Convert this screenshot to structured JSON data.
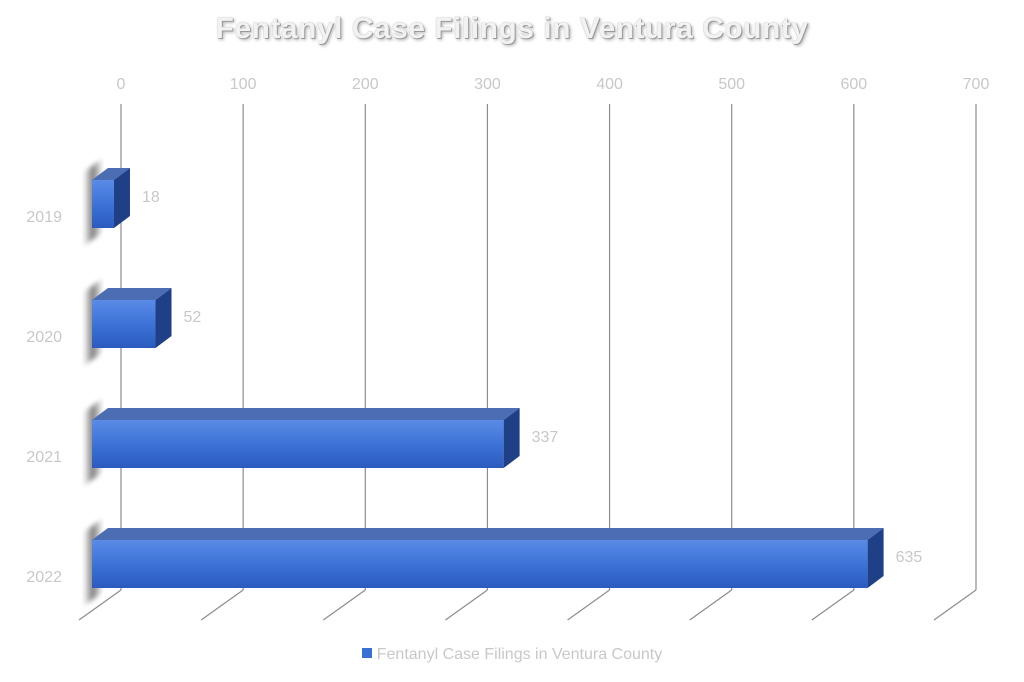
{
  "chart_data": {
    "type": "bar",
    "orientation": "horizontal",
    "title": "Fentanyl Case Filings in Ventura County",
    "categories": [
      "2019",
      "2020",
      "2021",
      "2022"
    ],
    "series": [
      {
        "name": "Fentanyl Case Filings in Ventura County",
        "values": [
          18,
          52,
          337,
          635
        ]
      }
    ],
    "xlim": [
      0,
      700
    ],
    "x_ticks": [
      "0",
      "100",
      "200",
      "300",
      "400",
      "500",
      "600",
      "700"
    ],
    "grid": true,
    "legend_position": "bottom",
    "bar_color": "#3a6fd4"
  }
}
